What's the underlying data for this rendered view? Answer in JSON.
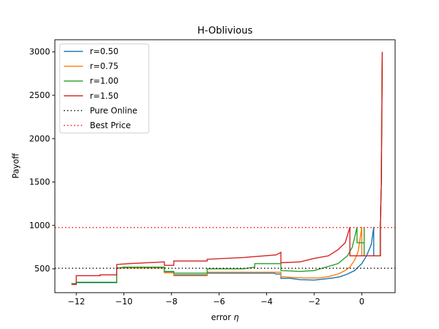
{
  "chart_data": {
    "type": "line",
    "title": "H-Oblivious",
    "xlabel": "error ",
    "xlabel_symbol": "η",
    "ylabel": "Payoff",
    "xlim": [
      -12.9,
      1.4
    ],
    "ylim": [
      225,
      3140
    ],
    "x_ticks": [
      -12,
      -10,
      -8,
      -6,
      -4,
      -2,
      0
    ],
    "x_tick_labels": [
      "−12",
      "−10",
      "−8",
      "−6",
      "−4",
      "−2",
      "0"
    ],
    "y_ticks": [
      500,
      1000,
      1500,
      2000,
      2500,
      3000
    ],
    "y_tick_labels": [
      "500",
      "1000",
      "1500",
      "2000",
      "2500",
      "3000"
    ],
    "legend_position": "upper-left",
    "series": [
      {
        "name": "r=0.50",
        "color": "#1f77b4",
        "style": "solid",
        "points": [
          [
            -12.2,
            330
          ],
          [
            -12.0,
            330
          ],
          [
            -12.0,
            340
          ],
          [
            -10.3,
            340
          ],
          [
            -10.3,
            510
          ],
          [
            -8.3,
            510
          ],
          [
            -8.3,
            460
          ],
          [
            -7.9,
            460
          ],
          [
            -7.9,
            430
          ],
          [
            -6.5,
            430
          ],
          [
            -6.5,
            450
          ],
          [
            -3.7,
            450
          ],
          [
            -3.6,
            440
          ],
          [
            -3.4,
            440
          ],
          [
            -3.4,
            390
          ],
          [
            -3.0,
            390
          ],
          [
            -2.6,
            375
          ],
          [
            -2.0,
            370
          ],
          [
            -1.5,
            385
          ],
          [
            -1.2,
            395
          ],
          [
            -0.9,
            410
          ],
          [
            -0.6,
            440
          ],
          [
            -0.3,
            480
          ],
          [
            0.0,
            560
          ],
          [
            0.2,
            650
          ],
          [
            0.4,
            780
          ],
          [
            0.5,
            980
          ],
          [
            0.5,
            650
          ],
          [
            0.78,
            650
          ],
          [
            0.78,
            980
          ],
          [
            0.82,
            1500
          ],
          [
            0.86,
            3000
          ]
        ]
      },
      {
        "name": "r=0.75",
        "color": "#ff7f0e",
        "style": "solid",
        "points": [
          [
            -12.2,
            330
          ],
          [
            -12.0,
            330
          ],
          [
            -12.0,
            345
          ],
          [
            -10.3,
            345
          ],
          [
            -10.3,
            510
          ],
          [
            -8.3,
            510
          ],
          [
            -8.3,
            455
          ],
          [
            -7.9,
            455
          ],
          [
            -7.9,
            420
          ],
          [
            -6.5,
            420
          ],
          [
            -6.5,
            460
          ],
          [
            -4.5,
            460
          ],
          [
            -3.6,
            460
          ],
          [
            -3.4,
            460
          ],
          [
            -3.4,
            410
          ],
          [
            -2.9,
            400
          ],
          [
            -2.4,
            395
          ],
          [
            -1.8,
            395
          ],
          [
            -1.4,
            410
          ],
          [
            -1.0,
            440
          ],
          [
            -0.7,
            480
          ],
          [
            -0.5,
            520
          ],
          [
            -0.3,
            600
          ],
          [
            -0.15,
            700
          ],
          [
            0.0,
            980
          ],
          [
            0.0,
            650
          ],
          [
            0.78,
            650
          ],
          [
            0.78,
            980
          ],
          [
            0.82,
            1500
          ],
          [
            0.86,
            3000
          ]
        ]
      },
      {
        "name": "r=1.00",
        "color": "#2ca02c",
        "style": "solid",
        "points": [
          [
            -12.2,
            330
          ],
          [
            -12.0,
            330
          ],
          [
            -12.0,
            345
          ],
          [
            -10.3,
            345
          ],
          [
            -10.3,
            505
          ],
          [
            -10.0,
            520
          ],
          [
            -8.3,
            520
          ],
          [
            -8.3,
            470
          ],
          [
            -7.9,
            470
          ],
          [
            -7.9,
            450
          ],
          [
            -6.5,
            450
          ],
          [
            -6.5,
            500
          ],
          [
            -5.0,
            500
          ],
          [
            -4.5,
            520
          ],
          [
            -4.5,
            560
          ],
          [
            -3.6,
            560
          ],
          [
            -3.4,
            560
          ],
          [
            -3.4,
            480
          ],
          [
            -2.6,
            470
          ],
          [
            -2.0,
            480
          ],
          [
            -1.5,
            520
          ],
          [
            -1.0,
            560
          ],
          [
            -0.6,
            650
          ],
          [
            -0.4,
            750
          ],
          [
            -0.2,
            980
          ],
          [
            -0.2,
            800
          ],
          [
            0.1,
            800
          ],
          [
            0.1,
            980
          ],
          [
            0.1,
            650
          ],
          [
            0.78,
            650
          ],
          [
            0.78,
            980
          ],
          [
            0.82,
            1500
          ],
          [
            0.86,
            3000
          ]
        ]
      },
      {
        "name": "r=1.50",
        "color": "#d62728",
        "style": "solid",
        "points": [
          [
            -12.2,
            320
          ],
          [
            -12.0,
            320
          ],
          [
            -12.0,
            420
          ],
          [
            -11.0,
            420
          ],
          [
            -11.0,
            430
          ],
          [
            -10.3,
            430
          ],
          [
            -10.3,
            550
          ],
          [
            -9.8,
            560
          ],
          [
            -8.3,
            580
          ],
          [
            -8.3,
            540
          ],
          [
            -7.9,
            540
          ],
          [
            -7.9,
            590
          ],
          [
            -6.5,
            590
          ],
          [
            -6.5,
            610
          ],
          [
            -5.0,
            630
          ],
          [
            -3.6,
            660
          ],
          [
            -3.4,
            690
          ],
          [
            -3.4,
            570
          ],
          [
            -2.6,
            580
          ],
          [
            -2.0,
            620
          ],
          [
            -1.4,
            650
          ],
          [
            -1.0,
            720
          ],
          [
            -0.7,
            800
          ],
          [
            -0.5,
            980
          ],
          [
            -0.5,
            650
          ],
          [
            0.78,
            650
          ],
          [
            0.78,
            980
          ],
          [
            0.82,
            1500
          ],
          [
            0.86,
            3000
          ]
        ]
      },
      {
        "name": "Pure Online",
        "color": "#000000",
        "style": "dotted",
        "horizontal": 506
      },
      {
        "name": "Best Price",
        "color": "#ff0000",
        "style": "dotted",
        "horizontal": 975
      }
    ]
  }
}
